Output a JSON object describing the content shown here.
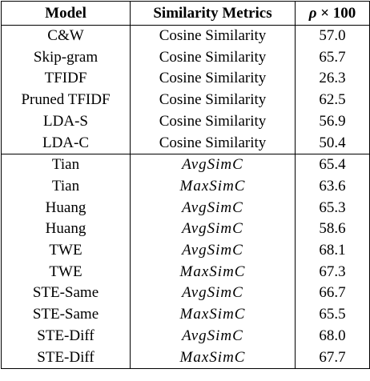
{
  "table": {
    "headers": {
      "model": "Model",
      "metric": "Similarity Metrics",
      "rho_symbol": "ρ",
      "rho_rest": " × 100"
    },
    "group1": [
      {
        "model": "C&W",
        "metric": "Cosine Similarity",
        "rho": "57.0"
      },
      {
        "model": "Skip-gram",
        "metric": "Cosine Similarity",
        "rho": "65.7"
      },
      {
        "model": "TFIDF",
        "metric": "Cosine Similarity",
        "rho": "26.3"
      },
      {
        "model": "Pruned TFIDF",
        "metric": "Cosine Similarity",
        "rho": "62.5"
      },
      {
        "model": "LDA-S",
        "metric": "Cosine Similarity",
        "rho": "56.9"
      },
      {
        "model": "LDA-C",
        "metric": "Cosine Similarity",
        "rho": "50.4"
      }
    ],
    "group2": [
      {
        "model": "Tian",
        "metric": "AvgSimC",
        "rho": "65.4"
      },
      {
        "model": "Tian",
        "metric": "MaxSimC",
        "rho": "63.6"
      },
      {
        "model": "Huang",
        "metric": "AvgSimC",
        "rho": "65.3"
      },
      {
        "model": "Huang",
        "metric": "AvgSimC",
        "rho": "58.6"
      },
      {
        "model": "TWE",
        "metric": "AvgSimC",
        "rho": "68.1"
      },
      {
        "model": "TWE",
        "metric": "MaxSimC",
        "rho": "67.3"
      },
      {
        "model": "STE-Same",
        "metric": "AvgSimC",
        "rho": "66.7"
      },
      {
        "model": "STE-Same",
        "metric": "MaxSimC",
        "rho": "65.5"
      },
      {
        "model": "STE-Diff",
        "metric": "AvgSimC",
        "rho": "68.0"
      },
      {
        "model": "STE-Diff",
        "metric": "MaxSimC",
        "rho": "67.7"
      }
    ]
  }
}
